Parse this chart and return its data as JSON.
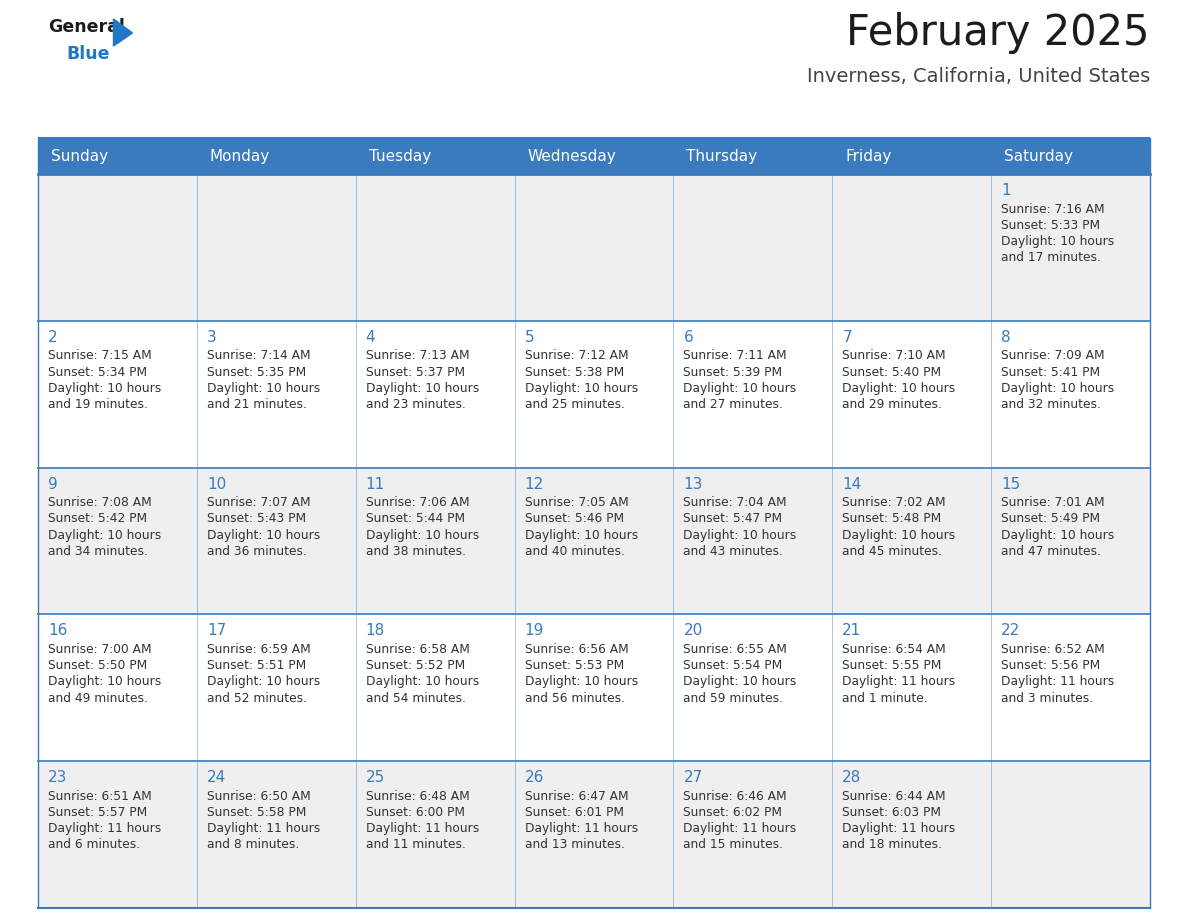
{
  "title": "February 2025",
  "subtitle": "Inverness, California, United States",
  "days_of_week": [
    "Sunday",
    "Monday",
    "Tuesday",
    "Wednesday",
    "Thursday",
    "Friday",
    "Saturday"
  ],
  "header_bg": "#3a7abf",
  "header_text": "#ffffff",
  "row_bg_gray": "#efefef",
  "row_bg_white": "#ffffff",
  "separator_color": "#3a7abf",
  "day_num_color": "#3a7abf",
  "cell_text_color": "#333333",
  "calendar_data": [
    [
      null,
      null,
      null,
      null,
      null,
      null,
      {
        "day": 1,
        "sunrise": "7:16 AM",
        "sunset": "5:33 PM",
        "daylight": "10 hours\nand 17 minutes."
      }
    ],
    [
      {
        "day": 2,
        "sunrise": "7:15 AM",
        "sunset": "5:34 PM",
        "daylight": "10 hours\nand 19 minutes."
      },
      {
        "day": 3,
        "sunrise": "7:14 AM",
        "sunset": "5:35 PM",
        "daylight": "10 hours\nand 21 minutes."
      },
      {
        "day": 4,
        "sunrise": "7:13 AM",
        "sunset": "5:37 PM",
        "daylight": "10 hours\nand 23 minutes."
      },
      {
        "day": 5,
        "sunrise": "7:12 AM",
        "sunset": "5:38 PM",
        "daylight": "10 hours\nand 25 minutes."
      },
      {
        "day": 6,
        "sunrise": "7:11 AM",
        "sunset": "5:39 PM",
        "daylight": "10 hours\nand 27 minutes."
      },
      {
        "day": 7,
        "sunrise": "7:10 AM",
        "sunset": "5:40 PM",
        "daylight": "10 hours\nand 29 minutes."
      },
      {
        "day": 8,
        "sunrise": "7:09 AM",
        "sunset": "5:41 PM",
        "daylight": "10 hours\nand 32 minutes."
      }
    ],
    [
      {
        "day": 9,
        "sunrise": "7:08 AM",
        "sunset": "5:42 PM",
        "daylight": "10 hours\nand 34 minutes."
      },
      {
        "day": 10,
        "sunrise": "7:07 AM",
        "sunset": "5:43 PM",
        "daylight": "10 hours\nand 36 minutes."
      },
      {
        "day": 11,
        "sunrise": "7:06 AM",
        "sunset": "5:44 PM",
        "daylight": "10 hours\nand 38 minutes."
      },
      {
        "day": 12,
        "sunrise": "7:05 AM",
        "sunset": "5:46 PM",
        "daylight": "10 hours\nand 40 minutes."
      },
      {
        "day": 13,
        "sunrise": "7:04 AM",
        "sunset": "5:47 PM",
        "daylight": "10 hours\nand 43 minutes."
      },
      {
        "day": 14,
        "sunrise": "7:02 AM",
        "sunset": "5:48 PM",
        "daylight": "10 hours\nand 45 minutes."
      },
      {
        "day": 15,
        "sunrise": "7:01 AM",
        "sunset": "5:49 PM",
        "daylight": "10 hours\nand 47 minutes."
      }
    ],
    [
      {
        "day": 16,
        "sunrise": "7:00 AM",
        "sunset": "5:50 PM",
        "daylight": "10 hours\nand 49 minutes."
      },
      {
        "day": 17,
        "sunrise": "6:59 AM",
        "sunset": "5:51 PM",
        "daylight": "10 hours\nand 52 minutes."
      },
      {
        "day": 18,
        "sunrise": "6:58 AM",
        "sunset": "5:52 PM",
        "daylight": "10 hours\nand 54 minutes."
      },
      {
        "day": 19,
        "sunrise": "6:56 AM",
        "sunset": "5:53 PM",
        "daylight": "10 hours\nand 56 minutes."
      },
      {
        "day": 20,
        "sunrise": "6:55 AM",
        "sunset": "5:54 PM",
        "daylight": "10 hours\nand 59 minutes."
      },
      {
        "day": 21,
        "sunrise": "6:54 AM",
        "sunset": "5:55 PM",
        "daylight": "11 hours\nand 1 minute."
      },
      {
        "day": 22,
        "sunrise": "6:52 AM",
        "sunset": "5:56 PM",
        "daylight": "11 hours\nand 3 minutes."
      }
    ],
    [
      {
        "day": 23,
        "sunrise": "6:51 AM",
        "sunset": "5:57 PM",
        "daylight": "11 hours\nand 6 minutes."
      },
      {
        "day": 24,
        "sunrise": "6:50 AM",
        "sunset": "5:58 PM",
        "daylight": "11 hours\nand 8 minutes."
      },
      {
        "day": 25,
        "sunrise": "6:48 AM",
        "sunset": "6:00 PM",
        "daylight": "11 hours\nand 11 minutes."
      },
      {
        "day": 26,
        "sunrise": "6:47 AM",
        "sunset": "6:01 PM",
        "daylight": "11 hours\nand 13 minutes."
      },
      {
        "day": 27,
        "sunrise": "6:46 AM",
        "sunset": "6:02 PM",
        "daylight": "11 hours\nand 15 minutes."
      },
      {
        "day": 28,
        "sunrise": "6:44 AM",
        "sunset": "6:03 PM",
        "daylight": "11 hours\nand 18 minutes."
      },
      null
    ]
  ]
}
